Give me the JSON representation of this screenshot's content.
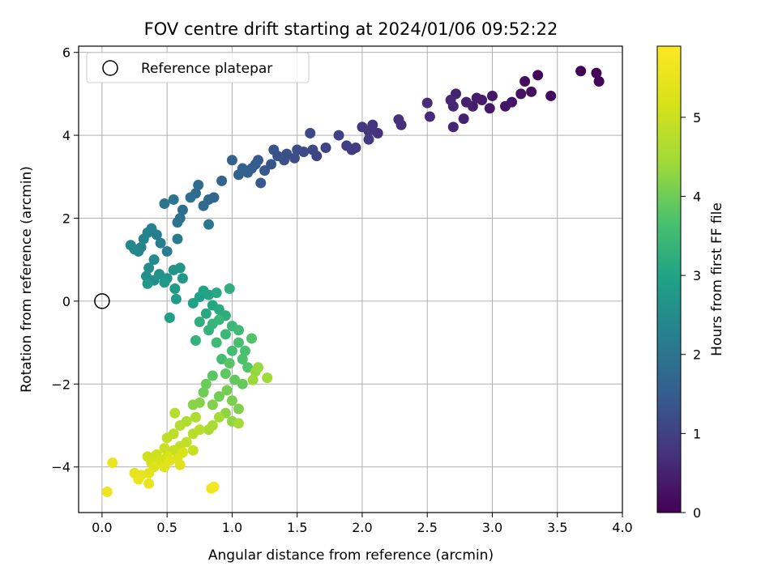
{
  "chart_data": {
    "type": "scatter",
    "title": "FOV centre drift starting at 2024/01/06 09:52:22",
    "xlabel": "Angular distance from reference (arcmin)",
    "ylabel": "Rotation from reference (arcmin)",
    "xlim": [
      -0.18,
      4.0
    ],
    "ylim": [
      -5.1,
      6.15
    ],
    "xticks": [
      0.0,
      0.5,
      1.0,
      1.5,
      2.0,
      2.5,
      3.0,
      3.5,
      4.0
    ],
    "xtick_labels": [
      "0.0",
      "0.5",
      "1.0",
      "1.5",
      "2.0",
      "2.5",
      "3.0",
      "3.5",
      "4.0"
    ],
    "yticks": [
      -4,
      -2,
      0,
      2,
      4,
      6
    ],
    "ytick_labels": [
      "−4",
      "−2",
      "0",
      "2",
      "4",
      "6"
    ],
    "grid": true,
    "legend": {
      "position": "top-left",
      "entries": [
        {
          "label": "Reference platepar",
          "marker": "open-circle"
        }
      ]
    },
    "reference_point": [
      0.0,
      0.0
    ],
    "colorbar": {
      "label": "Hours from first FF file",
      "colormap": "viridis",
      "range": [
        0,
        5.9
      ],
      "ticks": [
        0,
        1,
        2,
        3,
        4,
        5
      ],
      "tick_labels": [
        "0",
        "1",
        "2",
        "3",
        "4",
        "5"
      ]
    },
    "points": [
      [
        3.68,
        5.55,
        0.0
      ],
      [
        3.8,
        5.5,
        0.03
      ],
      [
        3.82,
        5.3,
        0.05
      ],
      [
        3.35,
        5.45,
        0.1
      ],
      [
        3.45,
        4.95,
        0.15
      ],
      [
        3.3,
        5.05,
        0.18
      ],
      [
        3.25,
        5.3,
        0.2
      ],
      [
        3.22,
        5.0,
        0.25
      ],
      [
        3.15,
        4.8,
        0.28
      ],
      [
        3.1,
        4.7,
        0.3
      ],
      [
        3.0,
        4.95,
        0.33
      ],
      [
        2.98,
        4.65,
        0.36
      ],
      [
        2.92,
        4.85,
        0.4
      ],
      [
        2.88,
        4.9,
        0.42
      ],
      [
        2.85,
        4.7,
        0.45
      ],
      [
        2.8,
        4.8,
        0.48
      ],
      [
        2.78,
        4.4,
        0.5
      ],
      [
        2.72,
        5.0,
        0.52
      ],
      [
        2.7,
        4.7,
        0.55
      ],
      [
        2.68,
        4.85,
        0.57
      ],
      [
        2.7,
        4.2,
        0.6
      ],
      [
        2.52,
        4.45,
        0.63
      ],
      [
        2.5,
        4.78,
        0.66
      ],
      [
        2.3,
        4.25,
        0.7
      ],
      [
        2.28,
        4.38,
        0.72
      ],
      [
        2.12,
        4.05,
        0.75
      ],
      [
        2.08,
        4.25,
        0.78
      ],
      [
        2.05,
        4.1,
        0.8
      ],
      [
        2.0,
        4.2,
        0.83
      ],
      [
        2.05,
        3.9,
        0.86
      ],
      [
        1.95,
        3.7,
        0.9
      ],
      [
        1.92,
        3.65,
        0.93
      ],
      [
        1.88,
        3.75,
        0.96
      ],
      [
        1.82,
        4.0,
        1.0
      ],
      [
        1.72,
        3.7,
        1.03
      ],
      [
        1.65,
        3.5,
        1.06
      ],
      [
        1.62,
        3.65,
        1.1
      ],
      [
        1.6,
        4.05,
        1.13
      ],
      [
        1.55,
        3.6,
        1.16
      ],
      [
        1.5,
        3.65,
        1.2
      ],
      [
        1.48,
        3.45,
        1.22
      ],
      [
        1.42,
        3.55,
        1.25
      ],
      [
        1.4,
        3.4,
        1.28
      ],
      [
        1.35,
        3.5,
        1.3
      ],
      [
        1.32,
        3.65,
        1.33
      ],
      [
        1.3,
        3.3,
        1.36
      ],
      [
        1.25,
        3.15,
        1.4
      ],
      [
        1.22,
        2.85,
        1.43
      ],
      [
        1.2,
        3.4,
        1.46
      ],
      [
        1.18,
        3.3,
        1.5
      ],
      [
        1.15,
        3.2,
        1.52
      ],
      [
        1.12,
        3.1,
        1.55
      ],
      [
        1.08,
        3.2,
        1.58
      ],
      [
        1.05,
        3.05,
        1.6
      ],
      [
        1.0,
        3.4,
        1.63
      ],
      [
        0.92,
        2.9,
        1.66
      ],
      [
        0.86,
        2.5,
        1.7
      ],
      [
        0.82,
        2.45,
        1.73
      ],
      [
        0.78,
        2.3,
        1.76
      ],
      [
        0.74,
        2.8,
        1.8
      ],
      [
        0.72,
        2.6,
        1.83
      ],
      [
        0.68,
        2.5,
        1.86
      ],
      [
        0.62,
        2.2,
        1.9
      ],
      [
        0.6,
        2.0,
        1.93
      ],
      [
        0.58,
        1.9,
        1.96
      ],
      [
        0.55,
        2.45,
        2.0
      ],
      [
        0.48,
        2.35,
        2.03
      ],
      [
        0.82,
        1.85,
        2.06
      ],
      [
        0.58,
        1.5,
        2.1
      ],
      [
        0.5,
        1.2,
        2.13
      ],
      [
        0.45,
        1.4,
        2.16
      ],
      [
        0.42,
        1.6,
        2.2
      ],
      [
        0.38,
        1.75,
        2.23
      ],
      [
        0.35,
        1.65,
        2.26
      ],
      [
        0.32,
        1.5,
        2.3
      ],
      [
        0.3,
        1.3,
        2.33
      ],
      [
        0.28,
        1.2,
        2.36
      ],
      [
        0.25,
        1.25,
        2.4
      ],
      [
        0.22,
        1.35,
        2.43
      ],
      [
        0.4,
        1.0,
        2.46
      ],
      [
        0.36,
        0.8,
        2.5
      ],
      [
        0.34,
        0.6,
        2.53
      ],
      [
        0.4,
        0.5,
        2.56
      ],
      [
        0.44,
        0.65,
        2.6
      ],
      [
        0.5,
        0.55,
        2.63
      ],
      [
        0.55,
        0.75,
        2.66
      ],
      [
        0.6,
        0.8,
        2.7
      ],
      [
        0.62,
        0.55,
        2.73
      ],
      [
        0.35,
        0.42,
        2.76
      ],
      [
        0.48,
        0.45,
        2.8
      ],
      [
        0.56,
        0.3,
        2.83
      ],
      [
        0.57,
        0.05,
        2.86
      ],
      [
        0.52,
        -0.4,
        2.9
      ],
      [
        0.7,
        -0.05,
        2.93
      ],
      [
        0.75,
        0.1,
        2.96
      ],
      [
        0.78,
        0.25,
        3.0
      ],
      [
        0.82,
        0.15,
        3.03
      ],
      [
        0.85,
        -0.1,
        3.06
      ],
      [
        0.88,
        0.2,
        3.1
      ],
      [
        0.8,
        -0.3,
        3.13
      ],
      [
        0.9,
        -0.2,
        3.16
      ],
      [
        0.95,
        -0.35,
        3.2
      ],
      [
        0.98,
        0.3,
        3.23
      ],
      [
        0.75,
        -0.5,
        3.26
      ],
      [
        0.72,
        -0.95,
        3.3
      ],
      [
        0.82,
        -0.7,
        3.33
      ],
      [
        0.85,
        -0.55,
        3.36
      ],
      [
        0.9,
        -0.45,
        3.4
      ],
      [
        0.95,
        -0.8,
        3.43
      ],
      [
        1.0,
        -0.6,
        3.46
      ],
      [
        1.05,
        -0.7,
        3.5
      ],
      [
        0.88,
        -1.0,
        3.53
      ],
      [
        0.92,
        -1.4,
        3.56
      ],
      [
        1.0,
        -1.2,
        3.6
      ],
      [
        1.05,
        -1.0,
        3.63
      ],
      [
        1.1,
        -1.2,
        3.66
      ],
      [
        1.08,
        -1.4,
        3.7
      ],
      [
        1.15,
        -0.9,
        3.73
      ],
      [
        1.12,
        -1.6,
        3.76
      ],
      [
        0.98,
        -1.5,
        3.8
      ],
      [
        0.85,
        -1.8,
        3.83
      ],
      [
        0.95,
        -1.75,
        3.86
      ],
      [
        1.02,
        -1.9,
        3.9
      ],
      [
        1.08,
        -2.0,
        3.93
      ],
      [
        0.8,
        -2.0,
        3.96
      ],
      [
        0.78,
        -2.2,
        4.0
      ],
      [
        0.9,
        -2.3,
        4.03
      ],
      [
        0.96,
        -2.15,
        4.06
      ],
      [
        1.0,
        -2.4,
        4.1
      ],
      [
        1.05,
        -2.6,
        4.13
      ],
      [
        0.85,
        -2.5,
        4.16
      ],
      [
        0.75,
        -2.45,
        4.2
      ],
      [
        0.7,
        -2.5,
        4.23
      ],
      [
        0.95,
        -2.7,
        4.26
      ],
      [
        1.0,
        -2.9,
        4.3
      ],
      [
        1.18,
        -1.7,
        4.33
      ],
      [
        1.2,
        -1.6,
        4.36
      ],
      [
        1.16,
        -1.9,
        4.4
      ],
      [
        1.27,
        -1.85,
        4.43
      ],
      [
        1.05,
        -2.95,
        4.46
      ],
      [
        0.9,
        -2.8,
        4.5
      ],
      [
        0.85,
        -3.0,
        4.53
      ],
      [
        0.82,
        -3.1,
        4.56
      ],
      [
        0.72,
        -2.8,
        4.6
      ],
      [
        0.65,
        -2.9,
        4.63
      ],
      [
        0.6,
        -3.0,
        4.66
      ],
      [
        0.56,
        -2.7,
        4.7
      ],
      [
        0.7,
        -3.2,
        4.73
      ],
      [
        0.75,
        -3.1,
        4.76
      ],
      [
        0.55,
        -3.2,
        4.8
      ],
      [
        0.5,
        -3.3,
        4.83
      ],
      [
        0.65,
        -3.4,
        4.86
      ],
      [
        0.6,
        -3.5,
        4.9
      ],
      [
        0.55,
        -3.6,
        4.93
      ],
      [
        0.7,
        -3.6,
        4.96
      ],
      [
        0.48,
        -3.55,
        5.0
      ],
      [
        0.42,
        -3.7,
        5.03
      ],
      [
        0.35,
        -3.75,
        5.06
      ],
      [
        0.38,
        -3.9,
        5.1
      ],
      [
        0.45,
        -3.85,
        5.13
      ],
      [
        0.5,
        -3.75,
        5.16
      ],
      [
        0.58,
        -3.8,
        5.2
      ],
      [
        0.62,
        -3.65,
        5.23
      ],
      [
        0.4,
        -4.0,
        5.26
      ],
      [
        0.48,
        -4.0,
        5.3
      ],
      [
        0.6,
        -3.95,
        5.33
      ],
      [
        0.52,
        -3.85,
        5.36
      ],
      [
        0.36,
        -4.15,
        5.4
      ],
      [
        0.3,
        -4.2,
        5.43
      ],
      [
        0.25,
        -4.15,
        5.46
      ],
      [
        0.36,
        -4.4,
        5.5
      ],
      [
        0.28,
        -4.3,
        5.53
      ],
      [
        0.08,
        -3.9,
        5.56
      ],
      [
        0.04,
        -4.6,
        5.6
      ],
      [
        0.84,
        -4.52,
        5.65
      ],
      [
        0.86,
        -4.48,
        5.7
      ]
    ]
  }
}
